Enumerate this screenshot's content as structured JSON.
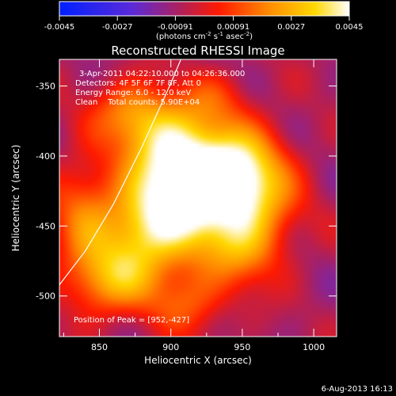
{
  "chart_data": {
    "type": "heatmap",
    "title": "Reconstructed RHESSI Image",
    "xlabel": "Heliocentric X (arcsec)",
    "ylabel": "Heliocentric Y (arcsec)",
    "xlim": [
      822,
      1016
    ],
    "ylim": [
      -529,
      -331
    ],
    "xticks": [
      850,
      900,
      950,
      1000
    ],
    "yticks": [
      -350,
      -400,
      -450,
      -500
    ],
    "colorbar": {
      "ticks": [
        "-0.0045",
        "-0.0027",
        "-0.00091",
        "0.00091",
        "0.0027",
        "0.0045"
      ],
      "range": [
        -0.0045,
        0.0045
      ],
      "unit_text": "(photons cm",
      "unit_sup1": "-2",
      "unit_mid": " s",
      "unit_sup2": "-1",
      "unit_mid2": " asec",
      "unit_sup3": "-2",
      "unit_end": ")",
      "colormap": "blue-purple-red-orange-yellow-white"
    },
    "annotations": {
      "time": "3-Apr-2011 04:22:10.000 to 04:26:36.000",
      "detectors": "Detectors: 4F 5F 6F 7F 8F, Att 0",
      "energy": "Energy Range: 6.0 - 12.0 keV",
      "clean": "Clean    Total counts: 5.90E+04",
      "peak": "Position of Peak = [952,-427]"
    },
    "peak": [
      952,
      -427
    ],
    "limb_curve": [
      [
        822,
        -492
      ],
      [
        840,
        -468
      ],
      [
        860,
        -434
      ],
      [
        880,
        -393
      ],
      [
        900,
        -348
      ],
      [
        907,
        -331
      ]
    ],
    "sources": [
      {
        "x": 952,
        "y": -427,
        "amp": 0.0046,
        "sx": 22,
        "sy": 28
      },
      {
        "x": 922,
        "y": -408,
        "amp": 0.004,
        "sx": 26,
        "sy": 22
      },
      {
        "x": 905,
        "y": -440,
        "amp": 0.0034,
        "sx": 24,
        "sy": 26
      },
      {
        "x": 878,
        "y": -455,
        "amp": 0.003,
        "sx": 22,
        "sy": 28
      },
      {
        "x": 895,
        "y": -385,
        "amp": 0.0028,
        "sx": 20,
        "sy": 20
      },
      {
        "x": 870,
        "y": -368,
        "amp": 0.0022,
        "sx": 18,
        "sy": 16
      },
      {
        "x": 855,
        "y": -490,
        "amp": 0.0025,
        "sx": 22,
        "sy": 18
      },
      {
        "x": 915,
        "y": -505,
        "amp": 0.0018,
        "sx": 18,
        "sy": 16
      },
      {
        "x": 950,
        "y": -470,
        "amp": 0.0016,
        "sx": 20,
        "sy": 18
      },
      {
        "x": 838,
        "y": -440,
        "amp": 0.002,
        "sx": 16,
        "sy": 30
      },
      {
        "x": 930,
        "y": -358,
        "amp": 0.0012,
        "sx": 18,
        "sy": 14
      }
    ],
    "date_stamp": "6-Aug-2013 16:13"
  }
}
